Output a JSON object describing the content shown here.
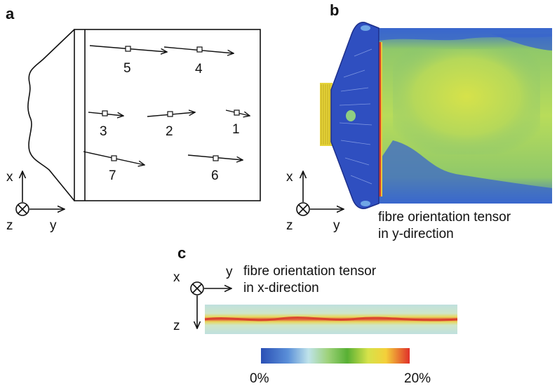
{
  "panels": {
    "a": {
      "letter": "a",
      "fibre_labels": [
        "5",
        "4",
        "3",
        "2",
        "1",
        "7",
        "6"
      ],
      "axes": {
        "x": "x",
        "y": "y",
        "z": "z"
      }
    },
    "b": {
      "letter": "b",
      "caption_line1": "fibre orientation tensor",
      "caption_line2": "in y-direction",
      "axes": {
        "x": "x",
        "y": "y",
        "z": "z"
      }
    },
    "c": {
      "letter": "c",
      "caption_line1": "fibre orientation tensor",
      "caption_line2": "in x-direction",
      "axes": {
        "x": "x",
        "y": "y",
        "z": "z"
      }
    }
  },
  "colorbar": {
    "min_label": "0%",
    "max_label": "20%",
    "colors": [
      "#2a4fb5",
      "#7fb5e0",
      "#bfe3e8",
      "#9ed17a",
      "#5fb33a",
      "#d8e24a",
      "#f2d13a",
      "#e3402a"
    ]
  }
}
